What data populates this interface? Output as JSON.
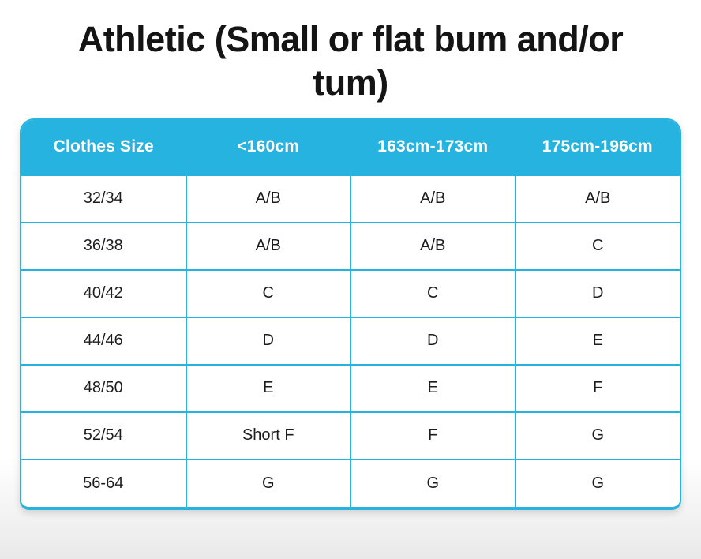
{
  "title_lines": {
    "line1": "Athletic (Small or flat bum and/or",
    "line2": "tum)"
  },
  "colors": {
    "accent_cyan": "#27b3e0",
    "header_text": "#ffffff",
    "body_text": "#1d1d1d",
    "title_text": "#141414",
    "page_bottom_fade": "#e9e9e9"
  },
  "chart_data": {
    "type": "table",
    "title": "Athletic (Small or flat bum and/or tum)",
    "columns": [
      "Clothes Size",
      "<160cm",
      "163cm-173cm",
      "175cm-196cm"
    ],
    "rows": [
      [
        "32/34",
        "A/B",
        "A/B",
        "A/B"
      ],
      [
        "36/38",
        "A/B",
        "A/B",
        "C"
      ],
      [
        "40/42",
        "C",
        "C",
        "D"
      ],
      [
        "44/46",
        "D",
        "D",
        "E"
      ],
      [
        "48/50",
        "E",
        "E",
        "F"
      ],
      [
        "52/54",
        "Short F",
        "F",
        "G"
      ],
      [
        "56-64",
        "G",
        "G",
        "G"
      ]
    ],
    "layout_hints": {
      "header_background": "#27b3e0",
      "header_text_color": "#ffffff",
      "grid": "on",
      "rounded_corners": true
    }
  }
}
